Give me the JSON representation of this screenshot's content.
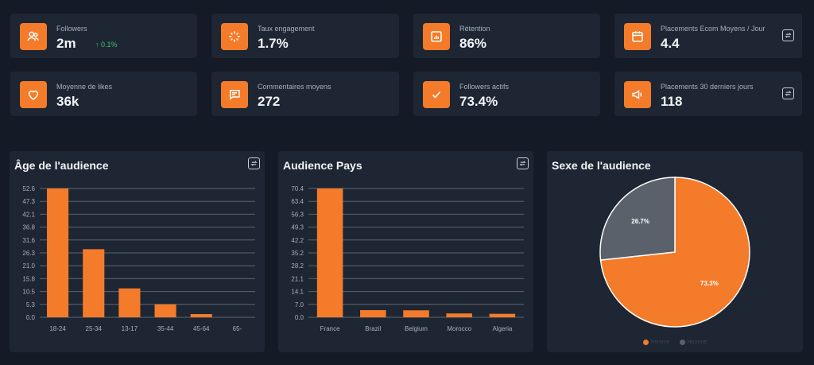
{
  "stats": [
    {
      "label": "Followers",
      "value": "2m",
      "trend": "↑ 0.1%",
      "icon": "users-icon"
    },
    {
      "label": "Taux engagement",
      "value": "1.7%",
      "icon": "sparkle-icon"
    },
    {
      "label": "Rétention",
      "value": "86%",
      "icon": "bar-chart-icon"
    },
    {
      "label": "Placements Ecom Moyens / Jour",
      "value": "4.4",
      "icon": "calendar-icon"
    },
    {
      "label": "Moyenne de likes",
      "value": "36k",
      "icon": "heart-icon"
    },
    {
      "label": "Commentaires moyens",
      "value": "272",
      "icon": "comment-icon"
    },
    {
      "label": "Followers actifs",
      "value": "73.4%",
      "icon": "check-icon"
    },
    {
      "label": "Placements 30 derniers jours",
      "value": "118",
      "icon": "megaphone-icon"
    }
  ],
  "colors": {
    "accent": "#f47b2a",
    "background": "#141b26",
    "card": "#1e2633",
    "gray": "#5b616b",
    "trend": "#3fc26b"
  },
  "panels": {
    "age_title": "Âge de l'audience",
    "country_title": "Audience Pays",
    "gender_title": "Sexe de l'audience"
  },
  "chart_data": [
    {
      "type": "bar",
      "title": "Âge de l'audience",
      "categories": [
        "18-24",
        "25-34",
        "13-17",
        "35-44",
        "45-64",
        "65-"
      ],
      "values": [
        52.6,
        27.8,
        11.8,
        5.3,
        1.3,
        0
      ],
      "yticks": [
        "52.6",
        "47.3",
        "42.1",
        "36.8",
        "31.6",
        "26.3",
        "21.0",
        "15.8",
        "10.5",
        "5.3",
        "0.0"
      ],
      "ylim": [
        0,
        52.6
      ],
      "grid": true
    },
    {
      "type": "bar",
      "title": "Audience Pays",
      "categories": [
        "France",
        "Brazil",
        "Belgium",
        "Morocco",
        "Algeria"
      ],
      "values": [
        70.4,
        3.9,
        3.8,
        2.1,
        1.9
      ],
      "yticks": [
        "70.4",
        "63.4",
        "56.3",
        "49.3",
        "42.2",
        "35.2",
        "28.2",
        "21.1",
        "14.1",
        "7.0",
        "0.0"
      ],
      "ylim": [
        0,
        70.4
      ],
      "grid": true
    },
    {
      "type": "pie",
      "title": "Sexe de l'audience",
      "slices": [
        {
          "value": 73.3,
          "label": "73.3%",
          "color": "#f47b2a"
        },
        {
          "value": 26.7,
          "label": "26.7%",
          "color": "#5b616b"
        }
      ],
      "legend": [
        "Femme",
        "Homme"
      ],
      "legend_position": "bottom"
    }
  ]
}
